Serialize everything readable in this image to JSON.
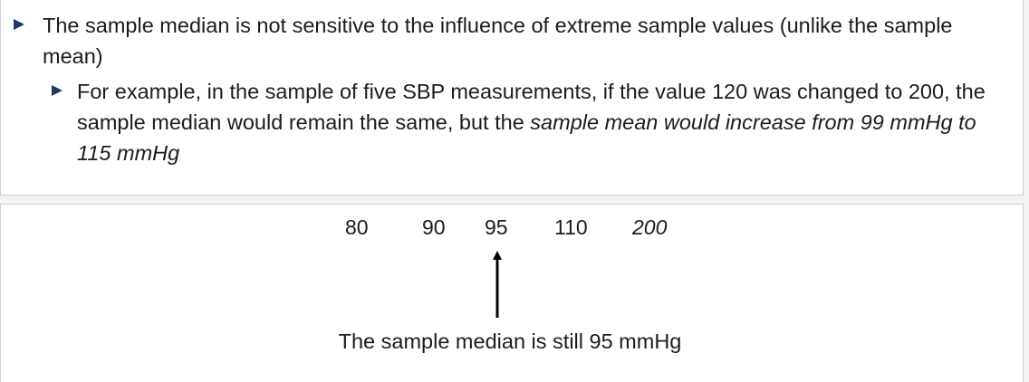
{
  "slide": {
    "bullet1": "The sample median is not sensitive to the influence of extreme sample values (unlike the sample mean)",
    "bullet2": {
      "plain": "For example, in the sample of five SBP measurements, if the value 120 was changed to 200, the sample median would remain the same, but the ",
      "italic": "sample mean would increase from 99 mmHg to 115 mmHg"
    }
  },
  "sample": {
    "values": [
      "80",
      "90",
      "95",
      "110",
      "200"
    ],
    "median_value": "95"
  },
  "caption": "The sample median is still 95 mmHg",
  "colors": {
    "bullet_marker": "#1f3864",
    "text": "#1c1c1c",
    "panel_border": "#cfcfcf"
  }
}
